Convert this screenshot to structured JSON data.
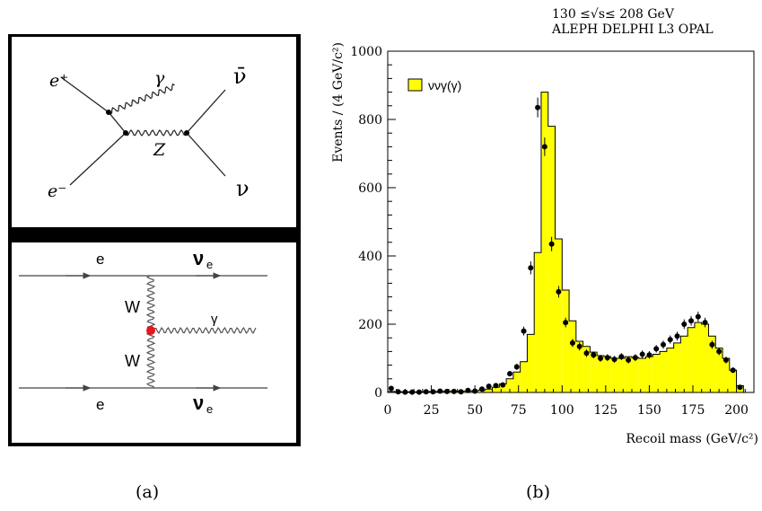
{
  "panel_labels": {
    "a": "(a)",
    "b": "(b)"
  },
  "diagram_top": {
    "labels": {
      "e_plus": "e⁺",
      "e_minus": "e⁻",
      "gamma": "γ",
      "z": "Z",
      "nubar": "ν̄",
      "nu": "ν"
    }
  },
  "diagram_bottom": {
    "labels": {
      "e_top": "e",
      "e_bottom": "e",
      "nue_top": "ν",
      "nue_bottom": "ν",
      "nue_sub": "e",
      "w_top": "W",
      "w_bottom": "W",
      "gamma": "γ"
    },
    "vertex_color": "#e8151b"
  },
  "chart_data": {
    "type": "bar",
    "header_line1": "130 ≤√s≤ 208 GeV",
    "header_line2": "ALEPH DELPHI L3 OPAL",
    "ylabel": "Events / (4 GeV/c²)",
    "xlabel": "Recoil mass (GeV/c²)",
    "xlim": [
      0,
      210
    ],
    "ylim": [
      0,
      1000
    ],
    "xticks": [
      "0",
      "25",
      "50",
      "75",
      "100",
      "125",
      "150",
      "175",
      "200"
    ],
    "yticks": [
      "0",
      "200",
      "400",
      "600",
      "800",
      "1000"
    ],
    "legend": "ννγ(γ)",
    "fill_color": "#ffff00",
    "bin_width": 4,
    "bin_starts": [
      0,
      4,
      8,
      12,
      16,
      20,
      24,
      28,
      32,
      36,
      40,
      44,
      48,
      52,
      56,
      60,
      64,
      68,
      72,
      76,
      80,
      84,
      88,
      92,
      96,
      100,
      104,
      108,
      112,
      116,
      120,
      124,
      128,
      132,
      136,
      140,
      144,
      148,
      152,
      156,
      160,
      164,
      168,
      172,
      176,
      180,
      184,
      188,
      192,
      196,
      200,
      204
    ],
    "histogram": [
      3,
      2,
      2,
      2,
      2,
      2,
      3,
      3,
      4,
      4,
      4,
      4,
      5,
      7,
      10,
      15,
      25,
      40,
      60,
      90,
      170,
      410,
      880,
      780,
      450,
      300,
      210,
      150,
      135,
      118,
      108,
      105,
      100,
      100,
      105,
      102,
      100,
      105,
      112,
      120,
      130,
      145,
      165,
      190,
      205,
      200,
      165,
      130,
      100,
      65,
      20,
      0
    ],
    "points_x": [
      2,
      6,
      10,
      14,
      18,
      22,
      26,
      30,
      34,
      38,
      42,
      46,
      50,
      54,
      58,
      62,
      66,
      70,
      74,
      78,
      82,
      86,
      90,
      94,
      98,
      102,
      106,
      110,
      114,
      118,
      122,
      126,
      130,
      134,
      138,
      142,
      146,
      150,
      154,
      158,
      162,
      166,
      170,
      174,
      178,
      182,
      186,
      190,
      194,
      198,
      202
    ],
    "points_y": [
      12,
      2,
      1,
      1,
      1,
      2,
      2,
      4,
      3,
      3,
      2,
      6,
      4,
      10,
      18,
      20,
      22,
      55,
      75,
      180,
      365,
      835,
      720,
      435,
      295,
      205,
      145,
      135,
      115,
      110,
      100,
      102,
      97,
      105,
      95,
      102,
      112,
      110,
      128,
      140,
      155,
      165,
      200,
      210,
      222,
      205,
      140,
      120,
      95,
      65,
      15
    ],
    "errors_y": [
      4,
      2,
      2,
      2,
      2,
      2,
      2,
      3,
      3,
      3,
      3,
      3,
      3,
      4,
      5,
      5,
      6,
      8,
      9,
      13,
      19,
      29,
      27,
      21,
      17,
      14,
      12,
      12,
      11,
      10,
      10,
      10,
      10,
      10,
      10,
      10,
      11,
      11,
      11,
      12,
      12,
      13,
      14,
      14,
      15,
      14,
      12,
      11,
      10,
      8,
      4
    ]
  }
}
